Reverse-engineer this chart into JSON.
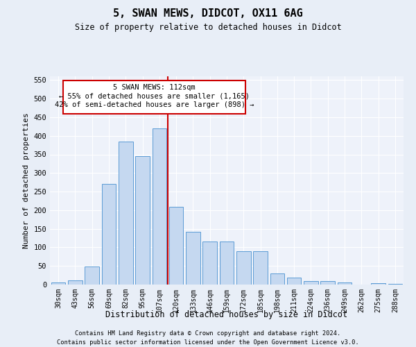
{
  "title1": "5, SWAN MEWS, DIDCOT, OX11 6AG",
  "title2": "Size of property relative to detached houses in Didcot",
  "xlabel": "Distribution of detached houses by size in Didcot",
  "ylabel": "Number of detached properties",
  "categories": [
    "30sqm",
    "43sqm",
    "56sqm",
    "69sqm",
    "82sqm",
    "95sqm",
    "107sqm",
    "120sqm",
    "133sqm",
    "146sqm",
    "159sqm",
    "172sqm",
    "185sqm",
    "198sqm",
    "211sqm",
    "224sqm",
    "236sqm",
    "249sqm",
    "262sqm",
    "275sqm",
    "288sqm"
  ],
  "values": [
    5,
    12,
    48,
    270,
    385,
    345,
    420,
    210,
    142,
    115,
    115,
    90,
    90,
    30,
    18,
    10,
    10,
    5,
    0,
    3,
    2
  ],
  "bar_color": "#c5d8f0",
  "bar_edge_color": "#5b9bd5",
  "vline_pos": 6.5,
  "vline_color": "#cc0000",
  "annotation_lines": [
    "5 SWAN MEWS: 112sqm",
    "← 55% of detached houses are smaller (1,165)",
    "42% of semi-detached houses are larger (898) →"
  ],
  "ylim": [
    0,
    560
  ],
  "yticks": [
    0,
    50,
    100,
    150,
    200,
    250,
    300,
    350,
    400,
    450,
    500,
    550
  ],
  "footer1": "Contains HM Land Registry data © Crown copyright and database right 2024.",
  "footer2": "Contains public sector information licensed under the Open Government Licence v3.0.",
  "bg_color": "#e8eef7",
  "plot_bg_color": "#eef2fa"
}
